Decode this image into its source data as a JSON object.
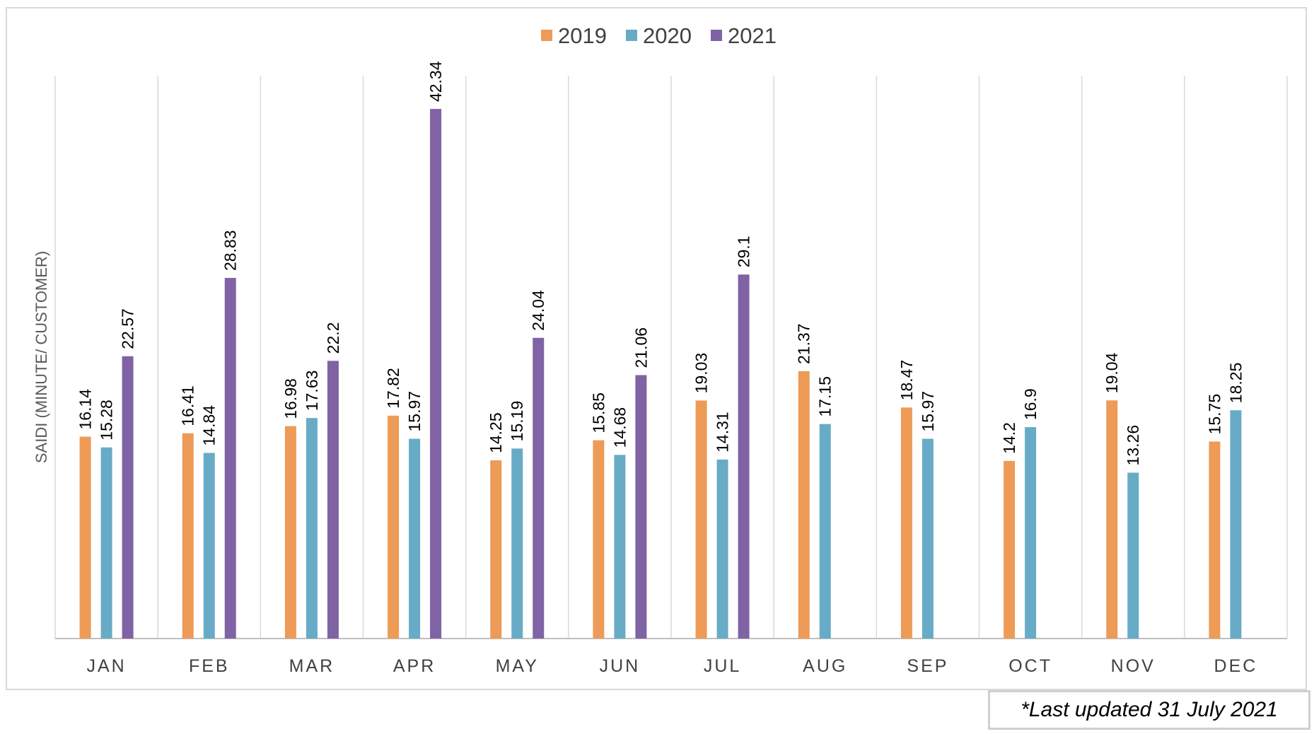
{
  "chart_data": {
    "type": "bar",
    "title": "",
    "xlabel": "",
    "ylabel": "SAIDI (MINUTE/ CUSTOMER)",
    "ylim": [
      0,
      45
    ],
    "grid": "vertical category separators",
    "legend_position": "top-center",
    "categories": [
      "JAN",
      "FEB",
      "MAR",
      "APR",
      "MAY",
      "JUN",
      "JUL",
      "AUG",
      "SEP",
      "OCT",
      "NOV",
      "DEC"
    ],
    "series": [
      {
        "name": "2019",
        "color": "#ed9b57",
        "values": [
          16.14,
          16.41,
          16.98,
          17.82,
          14.25,
          15.85,
          19.03,
          21.37,
          18.47,
          14.2,
          19.04,
          15.75
        ],
        "labels": [
          "16.14",
          "16.41",
          "16.98",
          "17.82",
          "14.25",
          "15.85",
          "19.03",
          "21.37",
          "18.47",
          "14.2",
          "19.04",
          "15.75"
        ]
      },
      {
        "name": "2020",
        "color": "#68abc6",
        "values": [
          15.28,
          14.84,
          17.63,
          15.97,
          15.19,
          14.68,
          14.31,
          17.15,
          15.97,
          16.9,
          13.26,
          18.25
        ],
        "labels": [
          "15.28",
          "14.84",
          "17.63",
          "15.97",
          "15.19",
          "14.68",
          "14.31",
          "17.15",
          "15.97",
          "16.9",
          "13.26",
          "18.25"
        ]
      },
      {
        "name": "2021",
        "color": "#7f63a4",
        "values": [
          22.57,
          28.83,
          22.2,
          42.34,
          24.04,
          21.06,
          29.1,
          null,
          null,
          null,
          null,
          null
        ],
        "labels": [
          "22.57",
          "28.83",
          "22.2",
          "42.34",
          "24.04",
          "21.06",
          "29.1",
          null,
          null,
          null,
          null,
          null
        ]
      }
    ]
  },
  "note": {
    "text": "*Last updated 31 July 2021"
  }
}
